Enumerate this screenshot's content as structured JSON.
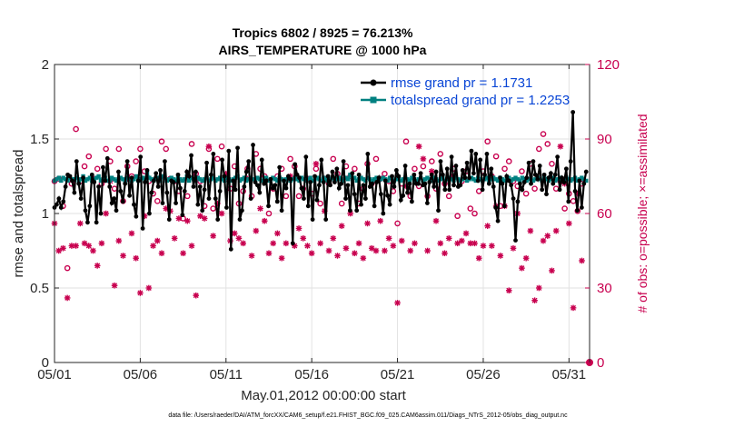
{
  "chart_data": {
    "type": "line",
    "title": "Tropics 6802 / 8925 = 76.213%",
    "subtitle": "AIRS_TEMPERATURE @ 1000 hPa",
    "xlabel": "May.01,2012 00:00:00 start",
    "ylabel": "rmse and totalspread",
    "y2label": "# of obs: o=possible; ×=assimilated",
    "x_tick_labels": [
      "05/01",
      "05/06",
      "05/11",
      "05/16",
      "05/21",
      "05/26",
      "05/31"
    ],
    "y_ticks": [
      "0",
      "0.5",
      "1",
      "1.5",
      "2"
    ],
    "y2_ticks": [
      "0",
      "30",
      "60",
      "90",
      "120"
    ],
    "xlim": [
      0,
      31.2
    ],
    "ylim": [
      0,
      2
    ],
    "y2lim": [
      0,
      120
    ],
    "grid": true,
    "legend": [
      "rmse grand pr = 1.1731",
      "totalspread grand pr = 1.2253"
    ],
    "footnote": "data file: /Users/raeder/DAI/ATM_forcXX/CAM6_setup/f.e21.FHIST_BGC.f09_025.CAM6assim.011/Diags_NTrS_2012-05/obs_diag_output.nc",
    "colors": {
      "rmse": "#000000",
      "spread": "#008080",
      "obs": "#c8004f",
      "legend_text": "#0a46d6"
    },
    "rmse_values": [
      1.04,
      1.06,
      1.1,
      1.04,
      1.08,
      1.18,
      1.26,
      1.25,
      1.22,
      1.14,
      1.35,
      1.2,
      1.1,
      1.24,
      1.02,
      0.94,
      1.05,
      1.26,
      1.21,
      0.94,
      1.18,
      1.0,
      1.31,
      1.22,
      1.37,
      1.18,
      1.07,
      1.1,
      1.02,
      1.28,
      1.15,
      1.08,
      1.2,
      1.35,
      1.12,
      1.24,
      1.06,
      0.98,
      1.22,
      1.38,
      0.9,
      1.21,
      1.29,
      1.0,
      1.14,
      1.22,
      1.27,
      1.18,
      1.29,
      1.07,
      1.35,
      1.14,
      0.96,
      1.22,
      1.21,
      1.07,
      1.26,
      1.17,
      0.99,
      1.15,
      1.28,
      1.25,
      1.39,
      1.18,
      1.28,
      1.06,
      1.18,
      1.02,
      1.16,
      1.34,
      1.1,
      1.26,
      1.4,
      1.1,
      0.96,
      1.15,
      1.36,
      1.25,
      1.04,
      1.42,
      0.76,
      1.22,
      1.16,
      1.44,
      0.96,
      1.02,
      1.18,
      1.28,
      1.35,
      1.1,
      1.46,
      1.21,
      1.19,
      1.14,
      1.36,
      1.2,
      1.22,
      1.05,
      1.23,
      1.17,
      1.19,
      1.08,
      1.31,
      1.02,
      1.22,
      1.17,
      1.25,
      1.23,
      0.8,
      1.33,
      1.26,
      1.24,
      1.17,
      1.1,
      1.38,
      1.05,
      1.21,
      0.96,
      1.25,
      1.09,
      1.19,
      1.36,
      1.21,
      0.96,
      1.25,
      1.19,
      1.28,
      1.21,
      1.3,
      1.17,
      1.2,
      1.35,
      1.1,
      1.19,
      1.02,
      1.27,
      1.13,
      1.02,
      1.26,
      1.06,
      1.19,
      1.1,
      1.4,
      1.18,
      1.2,
      1.05,
      1.21,
      1.24,
      1.13,
      1.0,
      1.22,
      1.12,
      1.06,
      1.25,
      1.18,
      1.29,
      1.25,
      1.09,
      1.12,
      1.32,
      1.14,
      1.2,
      1.08,
      1.26,
      1.2,
      1.2,
      1.27,
      1.19,
      1.2,
      1.07,
      1.21,
      1.26,
      1.18,
      1.28,
      1.02,
      1.35,
      1.26,
      1.16,
      1.3,
      1.16,
      1.38,
      1.19,
      1.32,
      1.18,
      1.19,
      1.29,
      1.24,
      1.34,
      1.24,
      1.42,
      1.27,
      1.4,
      1.22,
      1.36,
      1.16,
      1.26,
      1.4,
      1.2,
      1.3,
      1.18,
      1.04,
      0.95,
      1.24,
      1.2,
      1.05,
      1.25,
      1.22,
      1.19,
      1.1,
      0.82,
      1.08,
      1.2,
      1.16,
      1.21,
      1.24,
      1.34,
      1.2,
      1.35,
      1.26,
      1.23,
      1.32,
      1.16,
      1.26,
      1.13,
      1.24,
      1.27,
      1.2,
      1.26,
      1.38,
      1.16,
      1.24,
      1.21,
      1.3,
      1.08,
      1.35,
      1.68,
      1.15,
      1.02,
      1.22,
      1.04,
      1.2,
      1.28
    ],
    "spread_values": [
      1.22,
      1.23,
      1.24,
      1.22,
      1.24,
      1.23,
      1.22,
      1.24,
      1.23,
      1.23,
      1.24,
      1.22,
      1.23,
      1.25,
      1.22,
      1.23,
      1.24,
      1.22,
      1.23,
      1.24,
      1.25,
      1.22,
      1.23,
      1.24,
      1.22,
      1.22,
      1.24,
      1.23,
      1.22,
      1.23,
      1.24,
      1.23,
      1.22,
      1.24,
      1.23,
      1.22,
      1.23,
      1.25,
      1.22,
      1.23,
      1.24,
      1.22,
      1.27,
      1.24,
      1.23,
      1.22,
      1.23,
      1.24,
      1.22,
      1.25,
      1.24,
      1.22,
      1.23,
      1.24,
      1.23,
      1.22,
      1.24,
      1.23,
      1.22,
      1.23,
      1.25,
      1.22,
      1.24,
      1.23,
      1.22,
      1.24,
      1.23,
      1.22,
      1.23,
      1.24,
      1.22,
      1.23,
      1.24,
      1.22,
      1.23,
      1.24,
      1.23,
      1.22,
      1.24,
      1.23,
      1.22,
      1.23,
      1.24,
      1.25,
      1.22,
      1.23,
      1.24,
      1.22,
      1.23,
      1.24,
      1.23,
      1.22,
      1.24,
      1.23,
      1.22,
      1.23,
      1.24,
      1.22,
      1.23,
      1.24,
      1.23,
      1.22,
      1.24,
      1.23,
      1.22,
      1.23,
      1.24,
      1.22,
      1.23,
      1.24,
      1.23,
      1.22,
      1.24,
      1.23,
      1.22,
      1.23,
      1.24,
      1.22,
      1.23,
      1.24,
      1.23,
      1.22,
      1.24,
      1.23,
      1.22,
      1.23,
      1.24,
      1.22,
      1.23,
      1.24,
      1.23,
      1.22,
      1.24,
      1.23,
      1.26,
      1.23,
      1.24,
      1.22,
      1.23,
      1.24,
      1.23,
      1.22,
      1.24,
      1.23,
      1.22,
      1.23,
      1.24,
      1.22,
      1.23,
      1.24,
      1.23,
      1.22,
      1.24,
      1.23,
      1.22,
      1.23,
      1.24,
      1.22,
      1.23,
      1.24,
      1.23,
      1.22,
      1.24,
      1.23,
      1.22,
      1.23,
      1.24,
      1.22,
      1.23,
      1.24,
      1.23,
      1.22,
      1.24,
      1.23,
      1.22,
      1.23,
      1.24,
      1.22,
      1.23,
      1.24,
      1.23,
      1.22,
      1.24,
      1.23,
      1.22,
      1.23,
      1.24,
      1.22,
      1.23,
      1.24,
      1.23,
      1.22,
      1.24,
      1.23,
      1.22,
      1.23,
      1.24,
      1.22,
      1.23,
      1.24,
      1.23,
      1.22,
      1.24,
      1.23,
      1.22,
      1.23,
      1.24,
      1.22,
      1.23,
      1.24,
      1.23,
      1.22,
      1.24,
      1.23,
      1.22,
      1.23,
      1.24,
      1.22,
      1.23,
      1.24,
      1.23,
      1.22,
      1.24,
      1.23,
      1.22,
      1.23,
      1.24,
      1.22,
      1.23,
      1.24,
      1.23,
      1.22,
      1.24,
      1.23,
      1.22,
      1.23,
      1.24,
      1.22,
      1.23,
      1.24,
      1.23,
      1.22
    ],
    "obs_possible": [
      [
        0.0,
        73
      ],
      [
        0.25,
        74
      ],
      [
        0.5,
        63
      ],
      [
        0.75,
        38
      ],
      [
        1.0,
        72
      ],
      [
        1.25,
        94
      ],
      [
        1.5,
        73
      ],
      [
        1.75,
        79
      ],
      [
        2.0,
        83
      ],
      [
        2.25,
        74
      ],
      [
        2.5,
        78
      ],
      [
        2.75,
        72
      ],
      [
        3.0,
        86
      ],
      [
        3.25,
        81
      ],
      [
        3.5,
        70
      ],
      [
        3.75,
        86
      ],
      [
        4.0,
        65
      ],
      [
        4.25,
        79
      ],
      [
        4.5,
        75
      ],
      [
        4.75,
        81
      ],
      [
        5.0,
        86
      ],
      [
        5.25,
        77
      ],
      [
        5.5,
        73
      ],
      [
        5.75,
        68
      ],
      [
        6.0,
        65
      ],
      [
        6.25,
        89
      ],
      [
        6.5,
        86
      ],
      [
        6.75,
        74
      ],
      [
        7.0,
        73
      ],
      [
        7.25,
        69
      ],
      [
        7.5,
        58
      ],
      [
        7.75,
        67
      ],
      [
        8.0,
        88
      ],
      [
        8.25,
        76
      ],
      [
        8.5,
        73
      ],
      [
        8.75,
        63
      ],
      [
        9.0,
        86
      ],
      [
        9.25,
        62
      ],
      [
        9.5,
        82
      ],
      [
        9.75,
        87
      ],
      [
        10.0,
        74
      ],
      [
        10.25,
        70
      ],
      [
        10.5,
        79
      ],
      [
        10.75,
        64
      ],
      [
        11.0,
        69
      ],
      [
        11.25,
        78
      ],
      [
        11.5,
        67
      ],
      [
        11.75,
        84
      ],
      [
        12.0,
        78
      ],
      [
        12.25,
        75
      ],
      [
        12.5,
        60
      ],
      [
        12.75,
        70
      ],
      [
        13.0,
        75
      ],
      [
        13.25,
        78
      ],
      [
        13.5,
        67
      ],
      [
        13.75,
        82
      ],
      [
        14.0,
        79
      ],
      [
        14.25,
        67
      ],
      [
        14.5,
        70
      ],
      [
        14.75,
        74
      ],
      [
        15.0,
        68
      ],
      [
        15.25,
        78
      ],
      [
        15.5,
        64
      ],
      [
        15.75,
        74
      ],
      [
        16.0,
        72
      ],
      [
        16.25,
        82
      ],
      [
        16.5,
        76
      ],
      [
        16.75,
        64
      ],
      [
        17.0,
        79
      ],
      [
        17.25,
        75
      ],
      [
        17.5,
        78
      ],
      [
        17.75,
        64
      ],
      [
        18.0,
        70
      ],
      [
        18.25,
        80
      ],
      [
        18.5,
        72
      ],
      [
        18.75,
        82
      ],
      [
        19.0,
        74
      ],
      [
        19.25,
        76
      ],
      [
        19.5,
        73
      ],
      [
        19.75,
        69
      ],
      [
        20.0,
        56
      ],
      [
        20.25,
        72
      ],
      [
        20.5,
        89
      ],
      [
        20.75,
        67
      ],
      [
        21.0,
        78
      ],
      [
        21.25,
        71
      ],
      [
        21.5,
        79
      ],
      [
        21.75,
        67
      ],
      [
        22.0,
        81
      ],
      [
        22.25,
        70
      ],
      [
        22.5,
        84
      ],
      [
        22.75,
        72
      ],
      [
        23.0,
        67
      ],
      [
        23.25,
        78
      ],
      [
        23.5,
        59
      ],
      [
        23.75,
        73
      ],
      [
        24.0,
        77
      ],
      [
        24.25,
        62
      ],
      [
        24.5,
        60
      ],
      [
        24.75,
        69
      ],
      [
        25.0,
        77
      ],
      [
        25.25,
        89
      ],
      [
        25.5,
        75
      ],
      [
        25.75,
        83
      ],
      [
        26.0,
        63
      ],
      [
        26.25,
        78
      ],
      [
        26.5,
        81
      ],
      [
        26.75,
        73
      ],
      [
        27.0,
        71
      ],
      [
        27.25,
        77
      ],
      [
        27.5,
        68
      ],
      [
        27.75,
        80
      ],
      [
        28.0,
        70
      ],
      [
        28.25,
        86
      ],
      [
        28.5,
        92
      ],
      [
        28.75,
        88
      ],
      [
        29.0,
        80
      ],
      [
        29.25,
        70
      ],
      [
        29.5,
        73
      ],
      [
        29.75,
        62
      ],
      [
        30.0,
        68
      ],
      [
        30.25,
        65
      ],
      [
        30.5,
        61
      ],
      [
        30.75,
        72
      ]
    ],
    "obs_assimilated": [
      [
        0.0,
        56
      ],
      [
        0.25,
        45
      ],
      [
        0.5,
        46
      ],
      [
        0.75,
        26
      ],
      [
        1.0,
        47
      ],
      [
        1.25,
        47
      ],
      [
        1.5,
        56
      ],
      [
        1.75,
        48
      ],
      [
        2.0,
        47
      ],
      [
        2.25,
        45
      ],
      [
        2.5,
        39
      ],
      [
        2.75,
        48
      ],
      [
        3.0,
        60
      ],
      [
        3.25,
        73
      ],
      [
        3.5,
        31
      ],
      [
        3.75,
        49
      ],
      [
        4.0,
        43
      ],
      [
        4.25,
        74
      ],
      [
        4.5,
        52
      ],
      [
        4.75,
        42
      ],
      [
        5.0,
        28
      ],
      [
        5.25,
        59
      ],
      [
        5.5,
        30
      ],
      [
        5.75,
        47
      ],
      [
        6.0,
        49
      ],
      [
        6.25,
        44
      ],
      [
        6.5,
        62
      ],
      [
        6.75,
        61
      ],
      [
        7.0,
        50
      ],
      [
        7.25,
        58
      ],
      [
        7.5,
        44
      ],
      [
        7.75,
        57
      ],
      [
        8.0,
        47
      ],
      [
        8.25,
        27
      ],
      [
        8.5,
        59
      ],
      [
        8.75,
        58
      ],
      [
        9.0,
        87
      ],
      [
        9.25,
        51
      ],
      [
        9.5,
        64
      ],
      [
        9.75,
        60
      ],
      [
        10.0,
        76
      ],
      [
        10.25,
        49
      ],
      [
        10.5,
        52
      ],
      [
        10.75,
        50
      ],
      [
        11.0,
        48
      ],
      [
        11.25,
        74
      ],
      [
        11.5,
        43
      ],
      [
        11.75,
        53
      ],
      [
        12.0,
        62
      ],
      [
        12.25,
        57
      ],
      [
        12.5,
        44
      ],
      [
        12.75,
        48
      ],
      [
        13.0,
        52
      ],
      [
        13.25,
        42
      ],
      [
        13.5,
        48
      ],
      [
        13.75,
        75
      ],
      [
        14.0,
        47
      ],
      [
        14.25,
        54
      ],
      [
        14.5,
        50
      ],
      [
        14.75,
        47
      ],
      [
        15.0,
        44
      ],
      [
        15.25,
        80
      ],
      [
        15.5,
        48
      ],
      [
        15.75,
        61
      ],
      [
        16.0,
        45
      ],
      [
        16.25,
        50
      ],
      [
        16.5,
        43
      ],
      [
        16.75,
        55
      ],
      [
        17.0,
        46
      ],
      [
        17.25,
        60
      ],
      [
        17.5,
        44
      ],
      [
        17.75,
        48
      ],
      [
        18.0,
        42
      ],
      [
        18.25,
        56
      ],
      [
        18.5,
        46
      ],
      [
        18.75,
        45
      ],
      [
        19.0,
        57
      ],
      [
        19.25,
        45
      ],
      [
        19.5,
        50
      ],
      [
        19.75,
        47
      ],
      [
        20.0,
        24
      ],
      [
        20.25,
        49
      ],
      [
        20.5,
        71
      ],
      [
        20.75,
        45
      ],
      [
        21.0,
        48
      ],
      [
        21.25,
        87
      ],
      [
        21.5,
        82
      ],
      [
        21.75,
        45
      ],
      [
        22.0,
        77
      ],
      [
        22.25,
        57
      ],
      [
        22.5,
        48
      ],
      [
        22.75,
        44
      ],
      [
        23.0,
        50
      ],
      [
        23.25,
        75
      ],
      [
        23.5,
        48
      ],
      [
        23.75,
        49
      ],
      [
        24.0,
        52
      ],
      [
        24.25,
        48
      ],
      [
        24.5,
        48
      ],
      [
        24.75,
        42
      ],
      [
        25.0,
        47
      ],
      [
        25.25,
        55
      ],
      [
        25.5,
        47
      ],
      [
        25.75,
        63
      ],
      [
        26.0,
        43
      ],
      [
        26.25,
        63
      ],
      [
        26.5,
        29
      ],
      [
        26.75,
        46
      ],
      [
        27.0,
        60
      ],
      [
        27.25,
        38
      ],
      [
        27.5,
        42
      ],
      [
        27.75,
        53
      ],
      [
        28.0,
        25
      ],
      [
        28.25,
        30
      ],
      [
        28.5,
        49
      ],
      [
        28.75,
        51
      ],
      [
        29.0,
        37
      ],
      [
        29.25,
        53
      ],
      [
        29.5,
        87
      ],
      [
        29.75,
        72
      ],
      [
        30.0,
        56
      ],
      [
        30.25,
        22
      ],
      [
        30.5,
        68
      ],
      [
        30.75,
        41
      ]
    ]
  }
}
